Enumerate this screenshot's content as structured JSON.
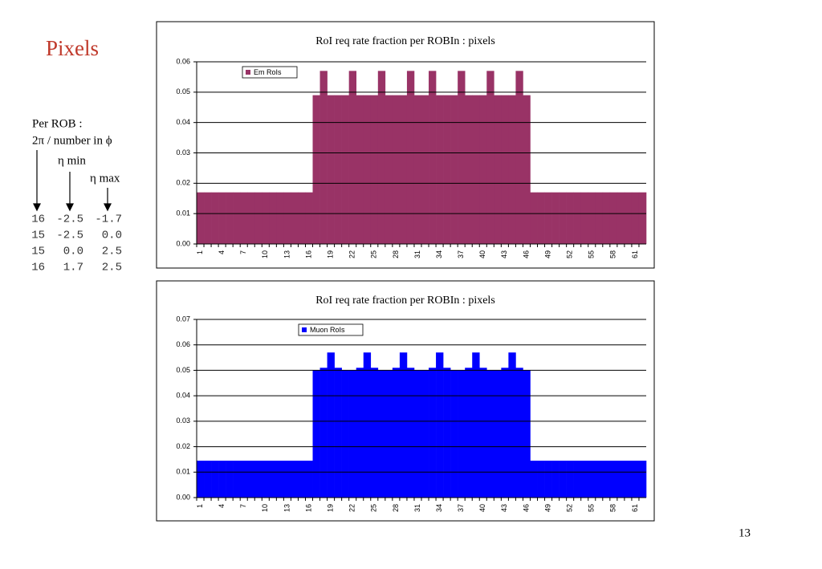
{
  "slide": {
    "title": "Pixels",
    "per_rob": "Per ROB :",
    "column_1": "2π / number in ϕ",
    "column_2": "η min",
    "column_3": "η max",
    "table": [
      [
        "16",
        "-2.5",
        "-1.7"
      ],
      [
        "15",
        "-2.5",
        "0.0"
      ],
      [
        "15",
        "0.0",
        "2.5"
      ],
      [
        "16",
        "1.7",
        "2.5"
      ]
    ],
    "page_number": "13"
  },
  "chart_data": [
    {
      "type": "bar",
      "title": "RoI req rate fraction per ROBIn : pixels",
      "categories": [
        "1",
        null,
        null,
        "4",
        null,
        null,
        "7",
        null,
        null,
        "10",
        null,
        null,
        "13",
        null,
        null,
        "16",
        null,
        null,
        "19",
        null,
        null,
        "22",
        null,
        null,
        "25",
        null,
        null,
        "28",
        null,
        null,
        "31",
        null,
        null,
        "34",
        null,
        null,
        "37",
        null,
        null,
        "40",
        null,
        null,
        "43",
        null,
        null,
        "46",
        null,
        null,
        "49",
        null,
        null,
        "52",
        null,
        null,
        "55",
        null,
        null,
        "58",
        null,
        null,
        "61",
        null
      ],
      "series": [
        {
          "name": "Em RoIs",
          "color": "#993366",
          "values": [
            0.017,
            0.017,
            0.017,
            0.017,
            0.017,
            0.017,
            0.017,
            0.017,
            0.017,
            0.017,
            0.017,
            0.017,
            0.017,
            0.017,
            0.017,
            0.017,
            0.049,
            0.057,
            0.049,
            0.049,
            0.049,
            0.057,
            0.049,
            0.049,
            0.049,
            0.057,
            0.049,
            0.049,
            0.049,
            0.057,
            0.049,
            0.049,
            0.057,
            0.049,
            0.049,
            0.049,
            0.057,
            0.049,
            0.049,
            0.049,
            0.057,
            0.049,
            0.049,
            0.049,
            0.057,
            0.049,
            0.017,
            0.017,
            0.017,
            0.017,
            0.017,
            0.017,
            0.017,
            0.017,
            0.017,
            0.017,
            0.017,
            0.017,
            0.017,
            0.017,
            0.017,
            0.017
          ]
        }
      ],
      "ylim": [
        0,
        0.06
      ],
      "yticks": [
        {
          "value": 0,
          "label": "0.00"
        },
        {
          "value": 0.01,
          "label": "0.01"
        },
        {
          "value": 0.02,
          "label": "0.02"
        },
        {
          "value": 0.03,
          "label": "0.03"
        },
        {
          "value": 0.04,
          "label": "0.04"
        },
        {
          "value": 0.05,
          "label": "0.05"
        },
        {
          "value": 0.06,
          "label": "0.06"
        }
      ],
      "grid": true,
      "legend": "top-left"
    },
    {
      "type": "bar",
      "title": "RoI req rate fraction per ROBIn : pixels",
      "categories": [
        "1",
        null,
        null,
        "4",
        null,
        null,
        "7",
        null,
        null,
        "10",
        null,
        null,
        "13",
        null,
        null,
        "16",
        null,
        null,
        "19",
        null,
        null,
        "22",
        null,
        null,
        "25",
        null,
        null,
        "28",
        null,
        null,
        "31",
        null,
        null,
        "34",
        null,
        null,
        "37",
        null,
        null,
        "40",
        null,
        null,
        "43",
        null,
        null,
        "46",
        null,
        null,
        "49",
        null,
        null,
        "52",
        null,
        null,
        "55",
        null,
        null,
        "58",
        null,
        null,
        "61",
        null
      ],
      "series": [
        {
          "name": "Muon RoIs",
          "color": "#0000ff",
          "values": [
            0.0145,
            0.0145,
            0.0145,
            0.0145,
            0.0145,
            0.0145,
            0.0145,
            0.0145,
            0.0145,
            0.0145,
            0.0145,
            0.0145,
            0.0145,
            0.0145,
            0.0145,
            0.0145,
            0.05,
            0.051,
            0.057,
            0.051,
            0.05,
            0.05,
            0.051,
            0.057,
            0.051,
            0.05,
            0.05,
            0.051,
            0.057,
            0.051,
            0.05,
            0.05,
            0.051,
            0.057,
            0.051,
            0.05,
            0.05,
            0.051,
            0.057,
            0.051,
            0.05,
            0.05,
            0.051,
            0.057,
            0.051,
            0.05,
            0.0145,
            0.0145,
            0.0145,
            0.0145,
            0.0145,
            0.0145,
            0.0145,
            0.0145,
            0.0145,
            0.0145,
            0.0145,
            0.0145,
            0.0145,
            0.0145,
            0.0145,
            0.0145
          ]
        }
      ],
      "ylim": [
        0,
        0.07
      ],
      "yticks": [
        {
          "value": 0,
          "label": "0.00"
        },
        {
          "value": 0.01,
          "label": "0.01"
        },
        {
          "value": 0.02,
          "label": "0.02"
        },
        {
          "value": 0.03,
          "label": "0.03"
        },
        {
          "value": 0.04,
          "label": "0.04"
        },
        {
          "value": 0.05,
          "label": "0.05"
        },
        {
          "value": 0.06,
          "label": "0.06"
        },
        {
          "value": 0.07,
          "label": "0.07"
        }
      ],
      "grid": true,
      "legend": "top-left"
    }
  ]
}
